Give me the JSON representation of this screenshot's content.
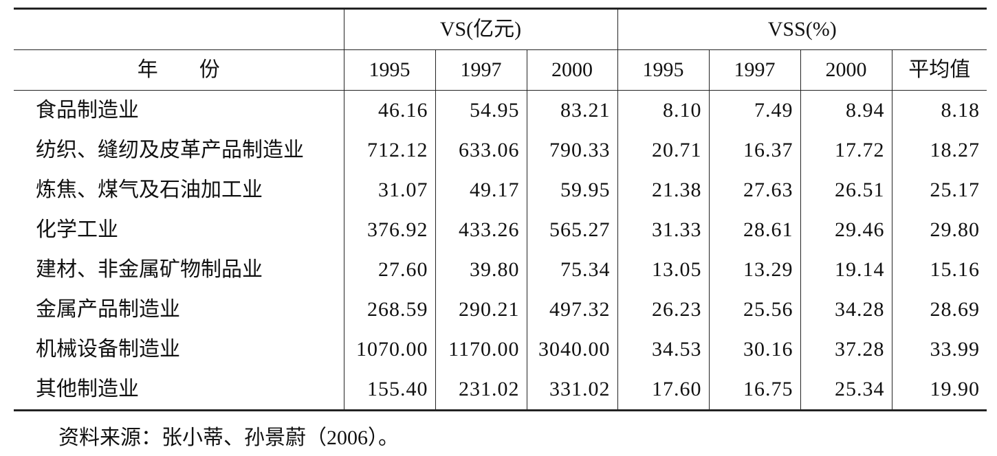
{
  "table": {
    "header_row1": [
      "VS(亿元)",
      "VSS(%)"
    ],
    "header_row2": [
      "年　　份",
      "1995",
      "1997",
      "2000",
      "1995",
      "1997",
      "2000",
      "平均值"
    ],
    "rows": [
      [
        "食品制造业",
        "46.16",
        "54.95",
        "83.21",
        "8.10",
        "7.49",
        "8.94",
        "8.18"
      ],
      [
        "纺织、缝纫及皮革产品制造业",
        "712.12",
        "633.06",
        "790.33",
        "20.71",
        "16.37",
        "17.72",
        "18.27"
      ],
      [
        "炼焦、煤气及石油加工业",
        "31.07",
        "49.17",
        "59.95",
        "21.38",
        "27.63",
        "26.51",
        "25.17"
      ],
      [
        "化学工业",
        "376.92",
        "433.26",
        "565.27",
        "31.33",
        "28.61",
        "29.46",
        "29.80"
      ],
      [
        "建材、非金属矿物制品业",
        "27.60",
        "39.80",
        "75.34",
        "13.05",
        "13.29",
        "19.14",
        "15.16"
      ],
      [
        "金属产品制造业",
        "268.59",
        "290.21",
        "497.32",
        "26.23",
        "25.56",
        "34.28",
        "28.69"
      ],
      [
        "机械设备制造业",
        "1070.00",
        "1170.00",
        "3040.00",
        "34.53",
        "30.16",
        "37.28",
        "33.99"
      ],
      [
        "其他制造业",
        "155.40",
        "231.02",
        "331.02",
        "17.60",
        "16.75",
        "25.34",
        "19.90"
      ]
    ]
  },
  "note": "资料来源：张小蒂、孙景蔚（2006）。"
}
